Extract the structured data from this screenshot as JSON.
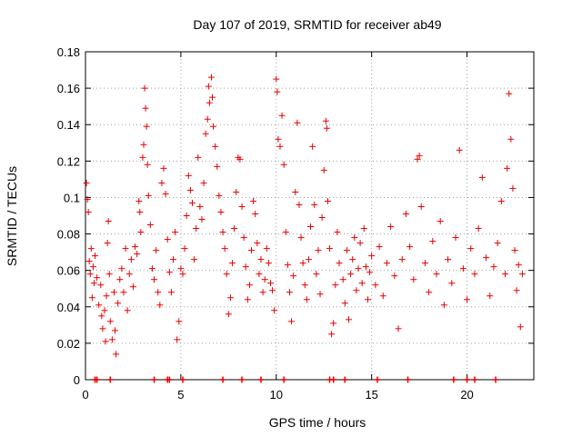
{
  "chart_data": {
    "type": "scatter",
    "title": "Day 107 of 2019, SRMTID for receiver ab49",
    "xlabel": "GPS time / hours",
    "ylabel": "SRMTID / TECUs",
    "xlim": [
      0,
      23.5
    ],
    "ylim": [
      0,
      0.18
    ],
    "x_ticks": [
      0,
      5,
      10,
      15,
      20
    ],
    "x_tick_labels": [
      "0",
      "5",
      "10",
      "15",
      "20"
    ],
    "y_ticks": [
      0,
      0.02,
      0.04,
      0.06,
      0.08,
      0.1,
      0.12,
      0.14,
      0.16,
      0.18
    ],
    "y_tick_labels": [
      "0",
      "0.02",
      "0.04",
      "0.06",
      "0.08",
      "0.1",
      "0.12",
      "0.14",
      "0.16",
      "0.18"
    ],
    "grid": true,
    "marker": "+",
    "marker_color": "#e60000",
    "series": [
      {
        "name": "SRMTID",
        "points": [
          [
            0.05,
            0.108
          ],
          [
            0.1,
            0.099
          ],
          [
            0.15,
            0.092
          ],
          [
            0.2,
            0.065
          ],
          [
            0.25,
            0.058
          ],
          [
            0.3,
            0.072
          ],
          [
            0.35,
            0.045
          ],
          [
            0.4,
            0.062
          ],
          [
            0.45,
            0.053
          ],
          [
            0.5,
            0.068
          ],
          [
            0.6,
            0.056
          ],
          [
            0.7,
            0.041
          ],
          [
            0.8,
            0.052
          ],
          [
            0.85,
            0.035
          ],
          [
            0.9,
            0.028
          ],
          [
            1.0,
            0.038
          ],
          [
            1.05,
            0.021
          ],
          [
            1.1,
            0.046
          ],
          [
            1.15,
            0.075
          ],
          [
            1.2,
            0.087
          ],
          [
            1.25,
            0.058
          ],
          [
            1.3,
            0.032
          ],
          [
            1.4,
            0.022
          ],
          [
            1.5,
            0.048
          ],
          [
            1.55,
            0.027
          ],
          [
            1.6,
            0.014
          ],
          [
            1.7,
            0.042
          ],
          [
            1.8,
            0.055
          ],
          [
            1.9,
            0.061
          ],
          [
            2.0,
            0.048
          ],
          [
            2.1,
            0.072
          ],
          [
            2.2,
            0.038
          ],
          [
            2.3,
            0.058
          ],
          [
            2.4,
            0.066
          ],
          [
            2.5,
            0.051
          ],
          [
            2.6,
            0.073
          ],
          [
            2.7,
            0.069
          ],
          [
            2.8,
            0.098
          ],
          [
            2.85,
            0.092
          ],
          [
            2.9,
            0.081
          ],
          [
            3.0,
            0.122
          ],
          [
            3.05,
            0.129
          ],
          [
            3.1,
            0.16
          ],
          [
            3.15,
            0.149
          ],
          [
            3.2,
            0.139
          ],
          [
            3.25,
            0.118
          ],
          [
            3.3,
            0.101
          ],
          [
            3.4,
            0.085
          ],
          [
            3.5,
            0.061
          ],
          [
            3.6,
            0.055
          ],
          [
            3.7,
            0.071
          ],
          [
            3.8,
            0.048
          ],
          [
            3.9,
            0.041
          ],
          [
            4.0,
            0.108
          ],
          [
            4.1,
            0.116
          ],
          [
            4.2,
            0.102
          ],
          [
            4.3,
            0.077
          ],
          [
            4.4,
            0.059
          ],
          [
            4.5,
            0.048
          ],
          [
            4.6,
            0.066
          ],
          [
            4.7,
            0.081
          ],
          [
            4.8,
            0.022
          ],
          [
            4.9,
            0.032
          ],
          [
            5.0,
            0.061
          ],
          [
            5.1,
            0.058
          ],
          [
            5.2,
            0.072
          ],
          [
            5.3,
            0.09
          ],
          [
            5.4,
            0.112
          ],
          [
            5.5,
            0.104
          ],
          [
            5.6,
            0.097
          ],
          [
            5.7,
            0.066
          ],
          [
            5.8,
            0.083
          ],
          [
            5.9,
            0.122
          ],
          [
            6.0,
            0.095
          ],
          [
            6.1,
            0.088
          ],
          [
            6.2,
            0.108
          ],
          [
            6.3,
            0.135
          ],
          [
            6.4,
            0.143
          ],
          [
            6.45,
            0.161
          ],
          [
            6.5,
            0.152
          ],
          [
            6.6,
            0.166
          ],
          [
            6.65,
            0.155
          ],
          [
            6.7,
            0.139
          ],
          [
            6.8,
            0.128
          ],
          [
            6.9,
            0.117
          ],
          [
            7.0,
            0.101
          ],
          [
            7.1,
            0.092
          ],
          [
            7.2,
            0.081
          ],
          [
            7.3,
            0.072
          ],
          [
            7.4,
            0.058
          ],
          [
            7.5,
            0.036
          ],
          [
            7.6,
            0.045
          ],
          [
            7.7,
            0.064
          ],
          [
            7.8,
            0.083
          ],
          [
            7.9,
            0.103
          ],
          [
            8.0,
            0.122
          ],
          [
            8.1,
            0.121
          ],
          [
            8.2,
            0.095
          ],
          [
            8.3,
            0.078
          ],
          [
            8.4,
            0.062
          ],
          [
            8.5,
            0.044
          ],
          [
            8.6,
            0.052
          ],
          [
            8.7,
            0.071
          ],
          [
            8.8,
            0.098
          ],
          [
            8.9,
            0.091
          ],
          [
            9.0,
            0.075
          ],
          [
            9.1,
            0.058
          ],
          [
            9.2,
            0.066
          ],
          [
            9.3,
            0.048
          ],
          [
            9.4,
            0.055
          ],
          [
            9.5,
            0.072
          ],
          [
            9.6,
            0.064
          ],
          [
            9.7,
            0.053
          ],
          [
            9.8,
            0.049
          ],
          [
            9.9,
            0.038
          ],
          [
            10.0,
            0.165
          ],
          [
            10.05,
            0.158
          ],
          [
            10.1,
            0.132
          ],
          [
            10.2,
            0.128
          ],
          [
            10.3,
            0.145
          ],
          [
            10.4,
            0.118
          ],
          [
            10.5,
            0.081
          ],
          [
            10.6,
            0.063
          ],
          [
            10.7,
            0.048
          ],
          [
            10.8,
            0.032
          ],
          [
            10.9,
            0.057
          ],
          [
            11.0,
            0.103
          ],
          [
            11.1,
            0.141
          ],
          [
            11.2,
            0.096
          ],
          [
            11.3,
            0.078
          ],
          [
            11.4,
            0.064
          ],
          [
            11.5,
            0.052
          ],
          [
            11.6,
            0.044
          ],
          [
            11.7,
            0.066
          ],
          [
            11.8,
            0.084
          ],
          [
            11.9,
            0.128
          ],
          [
            12.0,
            0.096
          ],
          [
            12.1,
            0.058
          ],
          [
            12.2,
            0.071
          ],
          [
            12.3,
            0.047
          ],
          [
            12.4,
            0.089
          ],
          [
            12.5,
            0.115
          ],
          [
            12.6,
            0.142
          ],
          [
            12.65,
            0.138
          ],
          [
            12.7,
            0.098
          ],
          [
            12.8,
            0.072
          ],
          [
            12.9,
            0.025
          ],
          [
            13.0,
            0.031
          ],
          [
            13.1,
            0.052
          ],
          [
            13.2,
            0.081
          ],
          [
            13.3,
            0.064
          ],
          [
            13.5,
            0.055
          ],
          [
            13.6,
            0.042
          ],
          [
            13.7,
            0.071
          ],
          [
            13.8,
            0.033
          ],
          [
            13.9,
            0.058
          ],
          [
            14.0,
            0.066
          ],
          [
            14.1,
            0.078
          ],
          [
            14.2,
            0.049
          ],
          [
            14.3,
            0.061
          ],
          [
            14.4,
            0.075
          ],
          [
            14.5,
            0.053
          ],
          [
            14.6,
            0.083
          ],
          [
            14.7,
            0.062
          ],
          [
            14.8,
            0.044
          ],
          [
            14.9,
            0.059
          ],
          [
            15.0,
            0.068
          ],
          [
            15.2,
            0.052
          ],
          [
            15.4,
            0.073
          ],
          [
            15.6,
            0.046
          ],
          [
            15.8,
            0.064
          ],
          [
            16.0,
            0.084
          ],
          [
            16.2,
            0.057
          ],
          [
            16.4,
            0.028
          ],
          [
            16.6,
            0.066
          ],
          [
            16.8,
            0.091
          ],
          [
            17.0,
            0.073
          ],
          [
            17.2,
            0.055
          ],
          [
            17.4,
            0.121
          ],
          [
            17.5,
            0.123
          ],
          [
            17.6,
            0.095
          ],
          [
            17.8,
            0.064
          ],
          [
            18.0,
            0.048
          ],
          [
            18.2,
            0.076
          ],
          [
            18.4,
            0.058
          ],
          [
            18.6,
            0.087
          ],
          [
            18.8,
            0.041
          ],
          [
            19.0,
            0.066
          ],
          [
            19.2,
            0.053
          ],
          [
            19.4,
            0.078
          ],
          [
            19.6,
            0.126
          ],
          [
            19.8,
            0.061
          ],
          [
            20.0,
            0.044
          ],
          [
            20.2,
            0.072
          ],
          [
            20.4,
            0.058
          ],
          [
            20.6,
            0.083
          ],
          [
            20.8,
            0.111
          ],
          [
            21.0,
            0.067
          ],
          [
            21.2,
            0.046
          ],
          [
            21.4,
            0.062
          ],
          [
            21.6,
            0.075
          ],
          [
            21.8,
            0.098
          ],
          [
            22.0,
            0.058
          ],
          [
            22.1,
            0.116
          ],
          [
            22.2,
            0.157
          ],
          [
            22.3,
            0.132
          ],
          [
            22.4,
            0.105
          ],
          [
            22.5,
            0.071
          ],
          [
            22.6,
            0.049
          ],
          [
            22.7,
            0.063
          ],
          [
            22.8,
            0.029
          ],
          [
            22.9,
            0.058
          ]
        ]
      }
    ],
    "bottom_markers_x": [
      0.5,
      0.6,
      1.3,
      3.6,
      4.3,
      4.4,
      5.1,
      7.2,
      8.2,
      9.2,
      10.4,
      12.8,
      13.0,
      13.6,
      15.3,
      16.9,
      19.3,
      20.0,
      20.4,
      21.5
    ]
  }
}
